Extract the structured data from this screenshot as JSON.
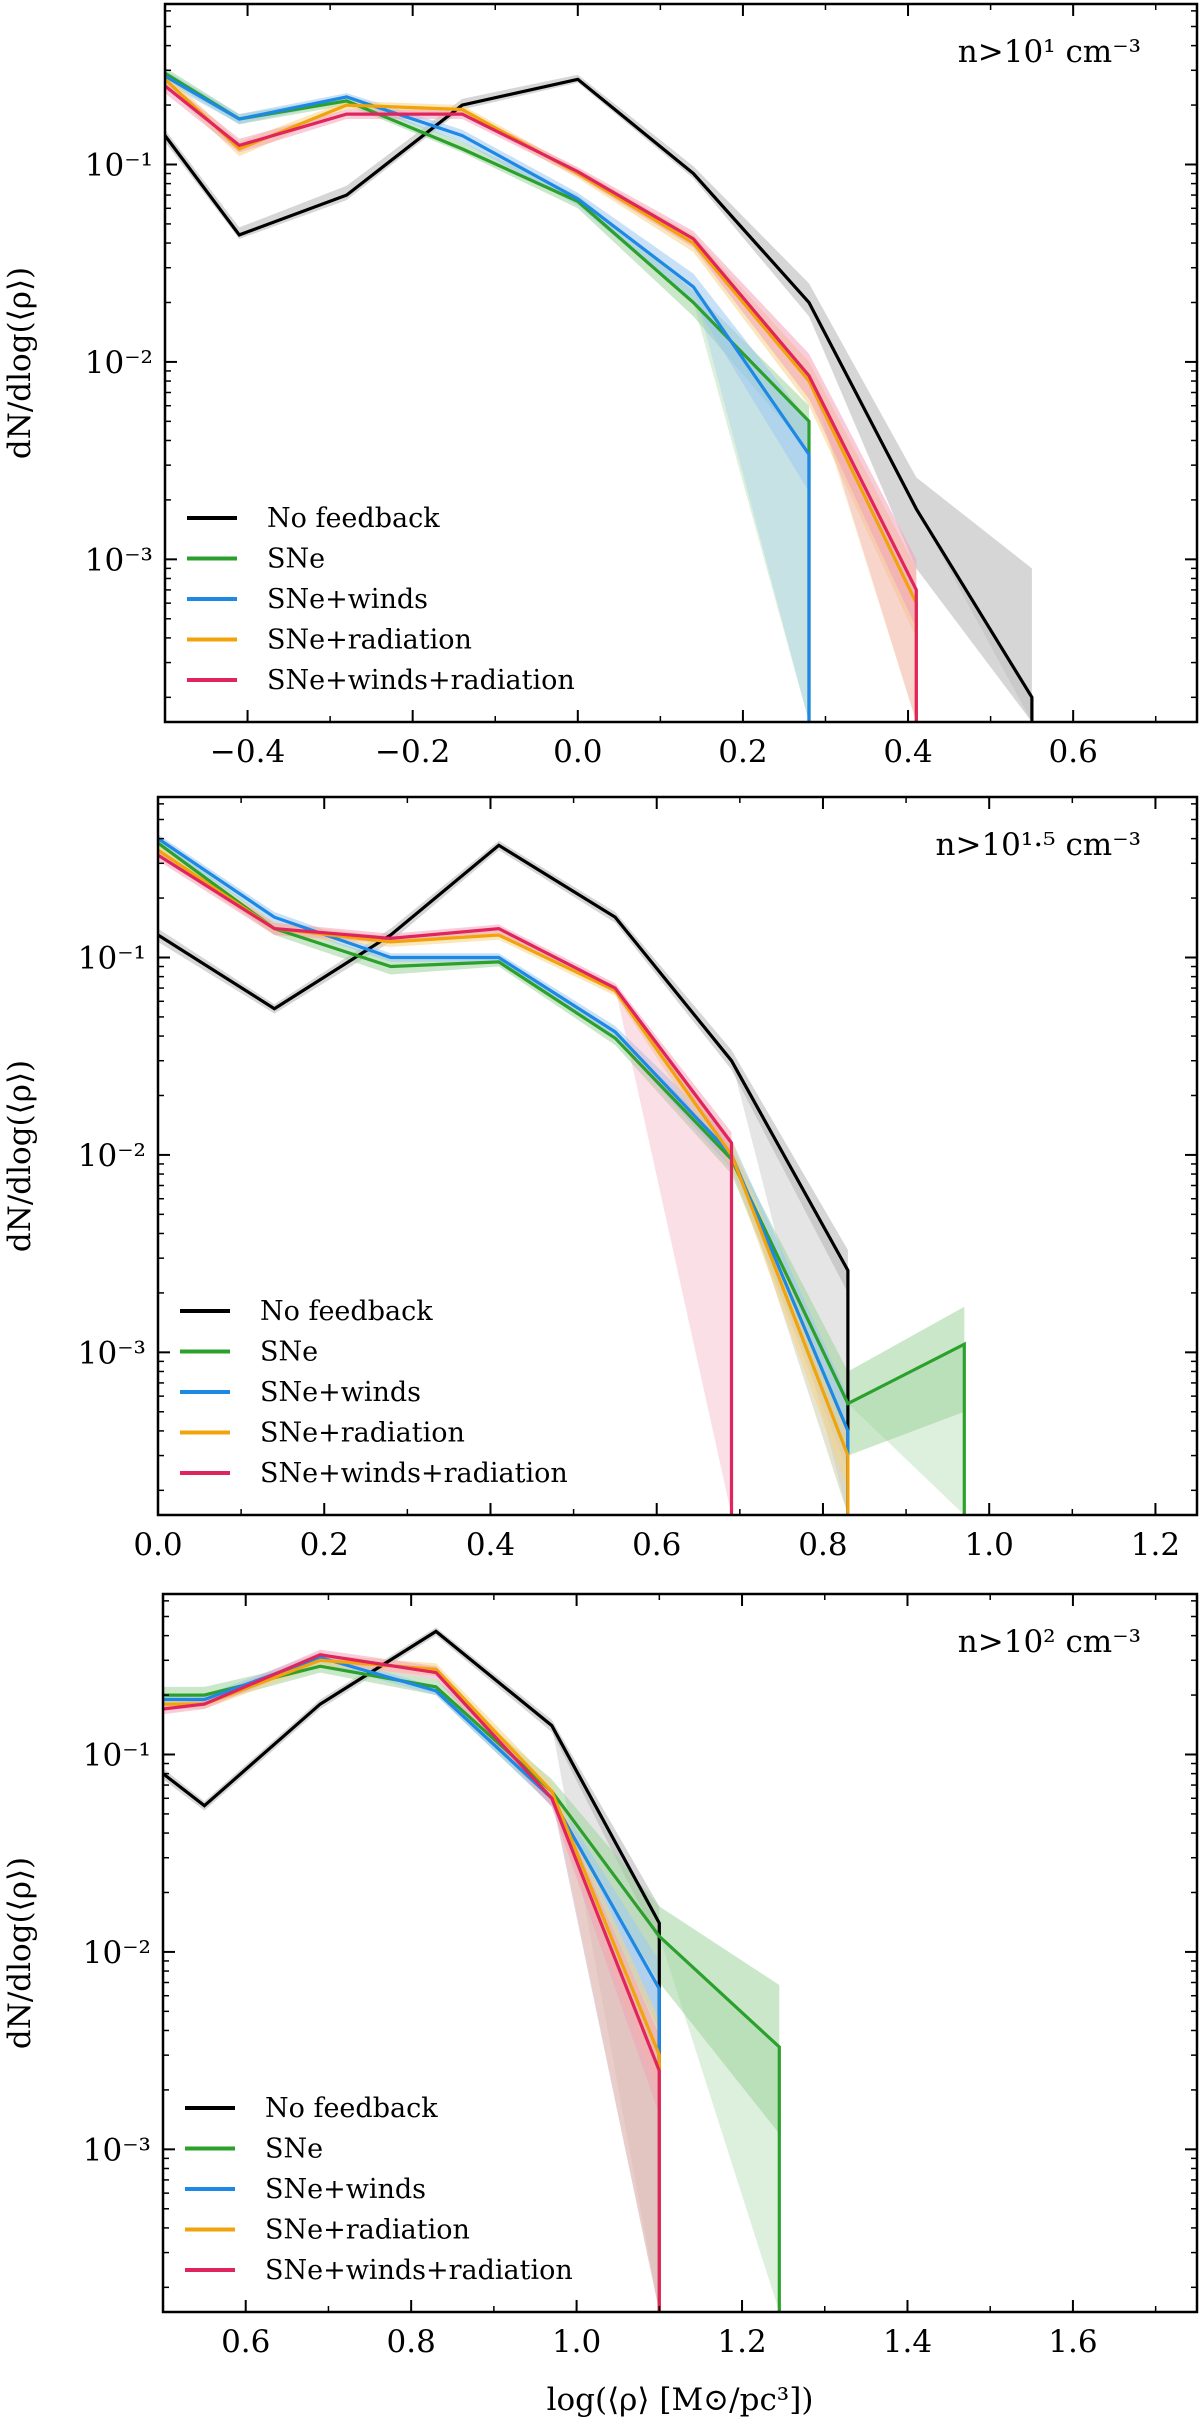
{
  "figure": {
    "xlabel": "log(⟨ρ⟩ [M⊙/pc³])",
    "ylabel": "dN/dlog(⟨ρ⟩)"
  },
  "series_styles": [
    {
      "name": "No feedback",
      "color": "#000000",
      "band": "#b4b4b4"
    },
    {
      "name": "SNe",
      "color": "#2ca02c",
      "band": "#9fd39f"
    },
    {
      "name": "SNe+winds",
      "color": "#1e88e5",
      "band": "#9cc9f1"
    },
    {
      "name": "SNe+radiation",
      "color": "#f0a30a",
      "band": "#f7d487"
    },
    {
      "name": "SNe+winds+radiation",
      "color": "#e0245e",
      "band": "#f2a3b8"
    }
  ],
  "chart_data": [
    {
      "type": "line",
      "annotation": "n>10¹ cm⁻³",
      "xlabel": "",
      "ylabel": "dN/dlog(⟨ρ⟩)",
      "xlim": [
        -0.5,
        0.75
      ],
      "ylim": [
        0.00015,
        0.65
      ],
      "yscale": "log",
      "xticks": [
        -0.4,
        -0.2,
        0.0,
        0.2,
        0.4,
        0.6
      ],
      "xticklabels": [
        "−0.4",
        "−0.2",
        "0.0",
        "0.2",
        "0.4",
        "0.6"
      ],
      "yticks": [
        0.1,
        0.01,
        0.001
      ],
      "yticklabels": [
        "10⁻¹",
        "10⁻²",
        "10⁻³"
      ],
      "legend": "lower-left",
      "series": [
        {
          "name": "No feedback",
          "x": [
            -0.5,
            -0.41,
            -0.28,
            -0.14,
            0.0,
            0.14,
            0.28,
            0.41,
            0.55
          ],
          "y": [
            0.14,
            0.044,
            0.07,
            0.2,
            0.27,
            0.09,
            0.02,
            0.0018,
            0.0002
          ],
          "lo": [
            0.13,
            0.042,
            0.066,
            0.19,
            0.26,
            0.085,
            0.017,
            0.0009,
            0.00015
          ],
          "hi": [
            0.15,
            0.048,
            0.078,
            0.215,
            0.285,
            0.098,
            0.025,
            0.0026,
            0.0009
          ],
          "drop_to_axis": true
        },
        {
          "name": "SNe",
          "x": [
            -0.5,
            -0.41,
            -0.28,
            -0.14,
            0.0,
            0.14,
            0.28
          ],
          "y": [
            0.29,
            0.17,
            0.21,
            0.12,
            0.065,
            0.02,
            0.005
          ],
          "lo": [
            0.27,
            0.16,
            0.2,
            0.115,
            0.06,
            0.017,
            0.0035
          ],
          "hi": [
            0.31,
            0.18,
            0.22,
            0.13,
            0.07,
            0.023,
            0.006
          ],
          "drop_to_axis": true
        },
        {
          "name": "SNe+winds",
          "x": [
            -0.5,
            -0.41,
            -0.28,
            -0.14,
            0.0,
            0.14,
            0.28
          ],
          "y": [
            0.28,
            0.17,
            0.22,
            0.14,
            0.067,
            0.024,
            0.0034
          ],
          "lo": [
            0.26,
            0.16,
            0.21,
            0.13,
            0.062,
            0.02,
            0.0022
          ],
          "hi": [
            0.3,
            0.18,
            0.23,
            0.15,
            0.072,
            0.028,
            0.005
          ],
          "drop_to_axis": true
        },
        {
          "name": "SNe+radiation",
          "x": [
            -0.5,
            -0.41,
            -0.28,
            -0.14,
            0.0,
            0.14,
            0.28,
            0.41
          ],
          "y": [
            0.27,
            0.12,
            0.2,
            0.19,
            0.09,
            0.04,
            0.008,
            0.0006
          ],
          "lo": [
            0.25,
            0.11,
            0.19,
            0.18,
            0.085,
            0.036,
            0.006,
            0.0004
          ],
          "hi": [
            0.29,
            0.13,
            0.21,
            0.2,
            0.095,
            0.044,
            0.01,
            0.0009
          ],
          "drop_to_axis": true
        },
        {
          "name": "SNe+winds+radiation",
          "x": [
            -0.5,
            -0.41,
            -0.28,
            -0.14,
            0.0,
            0.14,
            0.28,
            0.41
          ],
          "y": [
            0.25,
            0.125,
            0.18,
            0.18,
            0.092,
            0.042,
            0.0085,
            0.0007
          ],
          "lo": [
            0.23,
            0.115,
            0.17,
            0.17,
            0.087,
            0.038,
            0.0065,
            0.00045
          ],
          "hi": [
            0.27,
            0.135,
            0.19,
            0.19,
            0.097,
            0.046,
            0.011,
            0.001
          ],
          "drop_to_axis": true
        }
      ]
    },
    {
      "type": "line",
      "annotation": "n>10¹·⁵ cm⁻³",
      "xlabel": "",
      "ylabel": "dN/dlog(⟨ρ⟩)",
      "xlim": [
        0.0,
        1.25
      ],
      "ylim": [
        0.00015,
        0.65
      ],
      "yscale": "log",
      "xticks": [
        0.0,
        0.2,
        0.4,
        0.6,
        0.8,
        1.0,
        1.2
      ],
      "xticklabels": [
        "0.0",
        "0.2",
        "0.4",
        "0.6",
        "0.8",
        "1.0",
        "1.2"
      ],
      "yticks": [
        0.1,
        0.01,
        0.001
      ],
      "yticklabels": [
        "10⁻¹",
        "10⁻²",
        "10⁻³"
      ],
      "legend": "lower-left",
      "series": [
        {
          "name": "No feedback",
          "x": [
            0.0,
            0.14,
            0.28,
            0.41,
            0.55,
            0.69,
            0.83
          ],
          "y": [
            0.13,
            0.055,
            0.13,
            0.37,
            0.16,
            0.03,
            0.0026
          ],
          "lo": [
            0.12,
            0.052,
            0.12,
            0.35,
            0.15,
            0.027,
            0.002
          ],
          "hi": [
            0.14,
            0.058,
            0.14,
            0.39,
            0.17,
            0.034,
            0.0033
          ],
          "drop_to_axis": true
        },
        {
          "name": "SNe",
          "x": [
            0.0,
            0.14,
            0.28,
            0.41,
            0.55,
            0.69,
            0.83,
            0.97
          ],
          "y": [
            0.38,
            0.14,
            0.09,
            0.095,
            0.039,
            0.0095,
            0.00055,
            0.0011
          ],
          "lo": [
            0.36,
            0.13,
            0.082,
            0.09,
            0.036,
            0.008,
            0.0003,
            0.0005
          ],
          "hi": [
            0.4,
            0.15,
            0.098,
            0.1,
            0.042,
            0.011,
            0.0008,
            0.0017
          ],
          "drop_to_axis": true
        },
        {
          "name": "SNe+winds",
          "x": [
            0.0,
            0.14,
            0.28,
            0.41,
            0.55,
            0.69,
            0.83
          ],
          "y": [
            0.4,
            0.16,
            0.1,
            0.1,
            0.042,
            0.01,
            0.0004
          ],
          "lo": [
            0.38,
            0.15,
            0.095,
            0.095,
            0.039,
            0.0085,
            0.00025
          ],
          "hi": [
            0.42,
            0.17,
            0.105,
            0.105,
            0.045,
            0.012,
            0.0006
          ],
          "drop_to_axis": true
        },
        {
          "name": "SNe+radiation",
          "x": [
            0.0,
            0.14,
            0.28,
            0.41,
            0.55,
            0.69,
            0.83
          ],
          "y": [
            0.35,
            0.14,
            0.12,
            0.13,
            0.068,
            0.01,
            0.0003
          ],
          "lo": [
            0.33,
            0.13,
            0.113,
            0.123,
            0.064,
            0.0085,
            0.0002
          ],
          "hi": [
            0.37,
            0.15,
            0.127,
            0.137,
            0.072,
            0.012,
            0.0004
          ],
          "drop_to_axis": true
        },
        {
          "name": "SNe+winds+radiation",
          "x": [
            0.0,
            0.14,
            0.28,
            0.41,
            0.55,
            0.69
          ],
          "y": [
            0.33,
            0.14,
            0.125,
            0.14,
            0.07,
            0.0115
          ],
          "lo": [
            0.31,
            0.13,
            0.118,
            0.133,
            0.066,
            0.01
          ],
          "hi": [
            0.35,
            0.15,
            0.132,
            0.147,
            0.074,
            0.013
          ],
          "drop_to_axis": true
        }
      ]
    },
    {
      "type": "line",
      "annotation": "n>10² cm⁻³",
      "xlabel": "log(⟨ρ⟩ [M⊙/pc³])",
      "ylabel": "dN/dlog(⟨ρ⟩)",
      "xlim": [
        0.5,
        1.75
      ],
      "ylim": [
        0.00015,
        0.65
      ],
      "yscale": "log",
      "xticks": [
        0.6,
        0.8,
        1.0,
        1.2,
        1.4,
        1.6
      ],
      "xticklabels": [
        "0.6",
        "0.8",
        "1.0",
        "1.2",
        "1.4",
        "1.6"
      ],
      "yticks": [
        0.1,
        0.01,
        0.001
      ],
      "yticklabels": [
        "10⁻¹",
        "10⁻²",
        "10⁻³"
      ],
      "legend": "lower-left",
      "series": [
        {
          "name": "No feedback",
          "x": [
            0.5,
            0.55,
            0.69,
            0.83,
            0.97,
            1.1
          ],
          "y": [
            0.08,
            0.055,
            0.18,
            0.42,
            0.14,
            0.014
          ],
          "lo": [
            0.075,
            0.052,
            0.17,
            0.4,
            0.13,
            0.011
          ],
          "hi": [
            0.085,
            0.058,
            0.19,
            0.44,
            0.15,
            0.017
          ],
          "drop_to_axis": true
        },
        {
          "name": "SNe",
          "x": [
            0.5,
            0.55,
            0.69,
            0.83,
            0.97,
            1.1,
            1.245
          ],
          "y": [
            0.2,
            0.2,
            0.28,
            0.22,
            0.065,
            0.012,
            0.0033
          ],
          "lo": [
            0.18,
            0.18,
            0.26,
            0.2,
            0.055,
            0.007,
            0.0012
          ],
          "hi": [
            0.22,
            0.22,
            0.3,
            0.24,
            0.075,
            0.017,
            0.0068
          ],
          "drop_to_axis": true
        },
        {
          "name": "SNe+winds",
          "x": [
            0.5,
            0.55,
            0.69,
            0.83,
            0.97,
            1.1
          ],
          "y": [
            0.19,
            0.19,
            0.31,
            0.21,
            0.06,
            0.0065
          ],
          "lo": [
            0.18,
            0.18,
            0.29,
            0.2,
            0.055,
            0.004
          ],
          "hi": [
            0.2,
            0.2,
            0.33,
            0.22,
            0.065,
            0.009
          ],
          "drop_to_axis": true
        },
        {
          "name": "SNe+radiation",
          "x": [
            0.5,
            0.55,
            0.69,
            0.83,
            0.97,
            1.1
          ],
          "y": [
            0.18,
            0.18,
            0.3,
            0.27,
            0.065,
            0.003
          ],
          "lo": [
            0.17,
            0.17,
            0.28,
            0.25,
            0.058,
            0.0018
          ],
          "hi": [
            0.19,
            0.19,
            0.32,
            0.29,
            0.072,
            0.0045
          ],
          "drop_to_axis": true
        },
        {
          "name": "SNe+winds+radiation",
          "x": [
            0.5,
            0.55,
            0.69,
            0.83,
            0.97,
            1.1
          ],
          "y": [
            0.17,
            0.18,
            0.32,
            0.26,
            0.06,
            0.0025
          ],
          "lo": [
            0.16,
            0.17,
            0.3,
            0.24,
            0.054,
            0.0015
          ],
          "hi": [
            0.18,
            0.19,
            0.34,
            0.28,
            0.066,
            0.0038
          ],
          "drop_to_axis": true
        }
      ]
    }
  ]
}
